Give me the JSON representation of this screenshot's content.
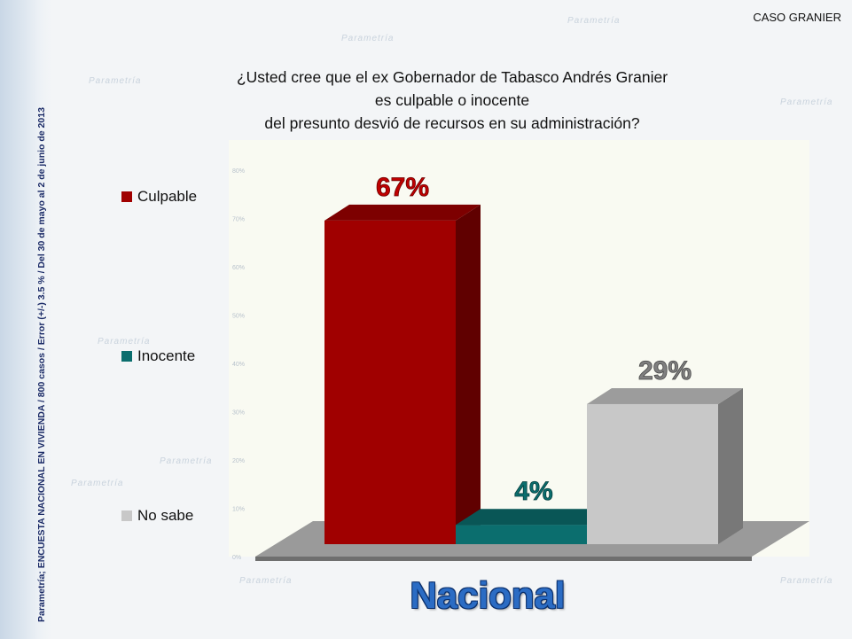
{
  "header": {
    "corner_label": "CASO GRANIER"
  },
  "side_note": "Parametría; ENCUESTA NACIONAL EN VIVIENDA / 800 casos / Error (+/-) 3.5 % / Del 30 de mayo al 2  de junio de 2013",
  "question": {
    "line1": "¿Usted cree que el ex Gobernador de Tabasco Andrés Granier",
    "line2": "es culpable o inocente",
    "line3": "del presunto desvió de recursos en su administración?"
  },
  "legend": [
    {
      "label": "Culpable",
      "color": "#a00000"
    },
    {
      "label": "Inocente",
      "color": "#0b6e6e"
    },
    {
      "label": "No sabe",
      "color": "#c8c8c8"
    }
  ],
  "chart_data": {
    "type": "bar",
    "categories": [
      "Culpable",
      "Inocente",
      "No sabe"
    ],
    "values": [
      67,
      4,
      29
    ],
    "data_labels": [
      "67%",
      "4%",
      "29%"
    ],
    "ylim": [
      0,
      80
    ],
    "ytick_labels": [
      "0%",
      "10%",
      "20%",
      "30%",
      "40%",
      "50%",
      "60%",
      "70%",
      "80%"
    ],
    "colors": [
      "#a00000",
      "#0b6e6e",
      "#c8c8c8"
    ],
    "label_colors": [
      "#c00000",
      "#0b6e6e",
      "#7f7f7f"
    ],
    "grid": false,
    "style": "3d"
  },
  "footer": {
    "region_label": "Nacional"
  },
  "watermark_text": "Parametría"
}
